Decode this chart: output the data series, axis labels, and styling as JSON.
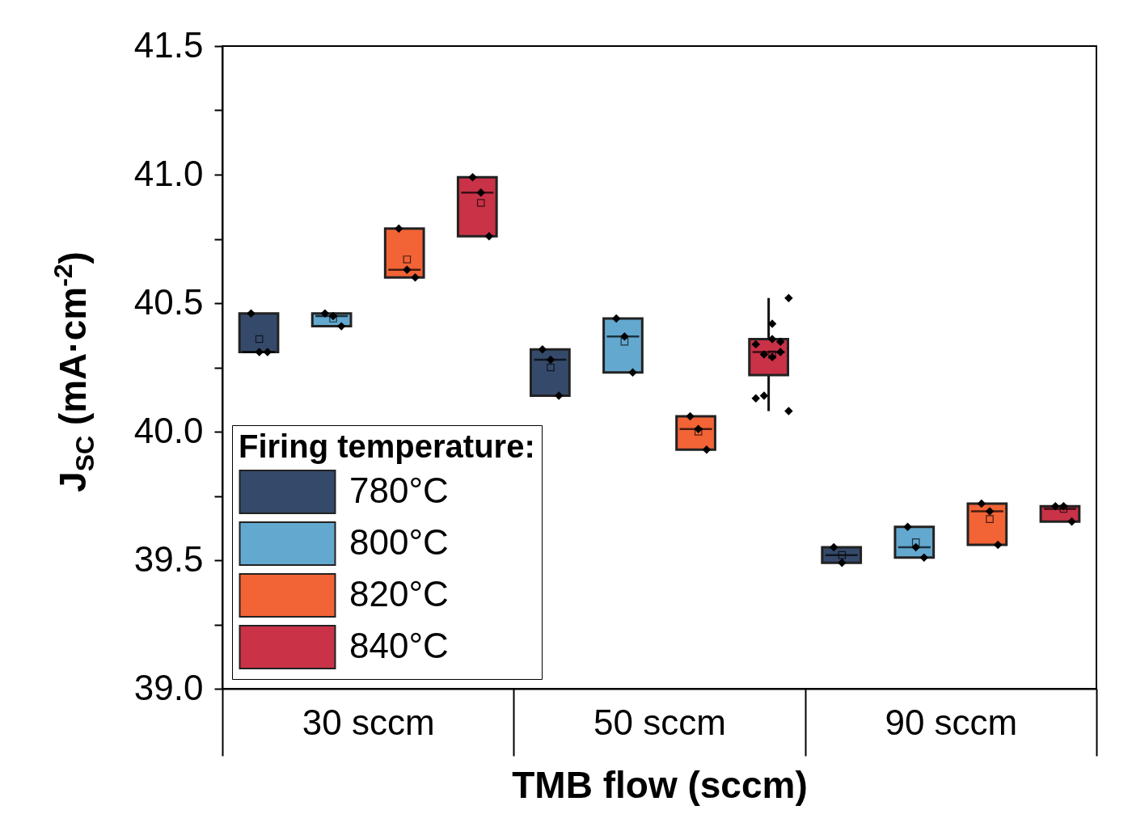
{
  "chart_data": {
    "type": "box",
    "xlabel": "TMB flow (sccm)",
    "ylabel": "J$_{SC}$ (mA·cm$^{-2}$)",
    "legend_title": "Firing temperature:",
    "legend": "bottom left",
    "grid": false,
    "categories": [
      "30 sccm",
      "50 sccm",
      "90 sccm"
    ],
    "ylim": [
      39.0,
      41.5
    ],
    "yticks": [
      {
        "value": 39,
        "label": "39.0"
      },
      {
        "value": 39.25,
        "label": null
      },
      39.5,
      {
        "value": 39.75,
        "label": null
      },
      {
        "value": 40,
        "label": "40.0"
      },
      {
        "value": 40.25,
        "label": null
      },
      40.5,
      {
        "value": 40.75,
        "label": null
      },
      {
        "value": 41,
        "label": "41.0"
      },
      {
        "value": 41.25,
        "label": null
      },
      41.5
    ],
    "series": [
      {
        "name": "780°C",
        "color": "#354a6b",
        "boxes": [
          {
            "low": 40.31,
            "q1": 40.31,
            "median": 40.31,
            "q3": 40.46,
            "high": 40.46,
            "mean": 40.36
          },
          {
            "low": 40.14,
            "q1": 40.14,
            "median": 40.28,
            "q3": 40.32,
            "high": 40.32,
            "mean": 40.25
          },
          {
            "low": 39.49,
            "q1": 39.49,
            "median": 39.52,
            "q3": 39.55,
            "high": 39.55,
            "mean": 39.52
          }
        ]
      },
      {
        "name": "800°C",
        "color": "#63a8cf",
        "boxes": [
          {
            "low": 40.41,
            "q1": 40.41,
            "median": 40.45,
            "q3": 40.46,
            "high": 40.46,
            "mean": 40.44
          },
          {
            "low": 40.23,
            "q1": 40.23,
            "median": 40.37,
            "q3": 40.44,
            "high": 40.44,
            "mean": 40.35
          },
          {
            "low": 39.51,
            "q1": 39.51,
            "median": 39.55,
            "q3": 39.63,
            "high": 39.63,
            "mean": 39.57
          }
        ]
      },
      {
        "name": "820°C",
        "color": "#f26336",
        "boxes": [
          {
            "low": 40.6,
            "q1": 40.6,
            "median": 40.63,
            "q3": 40.79,
            "high": 40.79,
            "mean": 40.67
          },
          {
            "low": 39.93,
            "q1": 39.93,
            "median": 40.01,
            "q3": 40.06,
            "high": 40.06,
            "mean": 40.0
          },
          {
            "low": 39.56,
            "q1": 39.56,
            "median": 39.69,
            "q3": 39.72,
            "high": 39.72,
            "mean": 39.66
          }
        ]
      },
      {
        "name": "840°C",
        "color": "#c93247",
        "boxes": [
          {
            "low": 40.76,
            "q1": 40.76,
            "median": 40.93,
            "q3": 40.99,
            "high": 40.99,
            "mean": 40.89
          },
          {
            "low": 40.08,
            "q1": 40.22,
            "median": 40.31,
            "q3": 40.36,
            "high": 40.52,
            "mean": 40.3
          },
          {
            "low": 39.65,
            "q1": 39.65,
            "median": 39.7,
            "q3": 39.71,
            "high": 39.71,
            "mean": 39.7
          }
        ]
      },
      {
        "type": "scatter",
        "marker": "diamond",
        "color": "#000000",
        "x": [
          "30 sccm",
          "30 sccm",
          "30 sccm",
          "50 sccm",
          "50 sccm",
          "50 sccm",
          "90 sccm",
          "90 sccm"
        ],
        "values": [
          40.46,
          40.31,
          40.31,
          40.32,
          40.28,
          40.14,
          39.55,
          39.49
        ]
      },
      {
        "type": "scatter",
        "marker": "diamond",
        "color": "#000000",
        "x": [
          "30 sccm",
          "30 sccm",
          "30 sccm",
          "50 sccm",
          "50 sccm",
          "50 sccm",
          "90 sccm",
          "90 sccm",
          "90 sccm"
        ],
        "values": [
          40.46,
          40.45,
          40.41,
          40.44,
          40.37,
          40.23,
          39.63,
          39.55,
          39.51
        ]
      },
      {
        "type": "scatter",
        "marker": "diamond",
        "color": "#000000",
        "x": [
          "30 sccm",
          "30 sccm",
          "30 sccm",
          "50 sccm",
          "50 sccm",
          "50 sccm",
          "90 sccm",
          "90 sccm",
          "90 sccm"
        ],
        "values": [
          40.79,
          40.63,
          40.6,
          40.06,
          40.01,
          39.93,
          39.72,
          39.69,
          39.56
        ]
      },
      {
        "type": "scatter",
        "marker": "diamond",
        "color": "#000000",
        "x": [
          "30 sccm",
          "30 sccm",
          "30 sccm",
          "50 sccm",
          "50 sccm",
          "50 sccm",
          "50 sccm",
          "50 sccm",
          "50 sccm",
          "50 sccm",
          "50 sccm",
          "50 sccm",
          "50 sccm",
          "50 sccm",
          "90 sccm",
          "90 sccm",
          "90 sccm"
        ],
        "values": [
          40.99,
          40.93,
          40.76,
          40.29,
          40.31,
          40.52,
          40.34,
          40.3,
          40.36,
          40.35,
          40.08,
          40.13,
          40.14,
          40.42,
          39.71,
          39.71,
          39.65
        ]
      }
    ]
  }
}
